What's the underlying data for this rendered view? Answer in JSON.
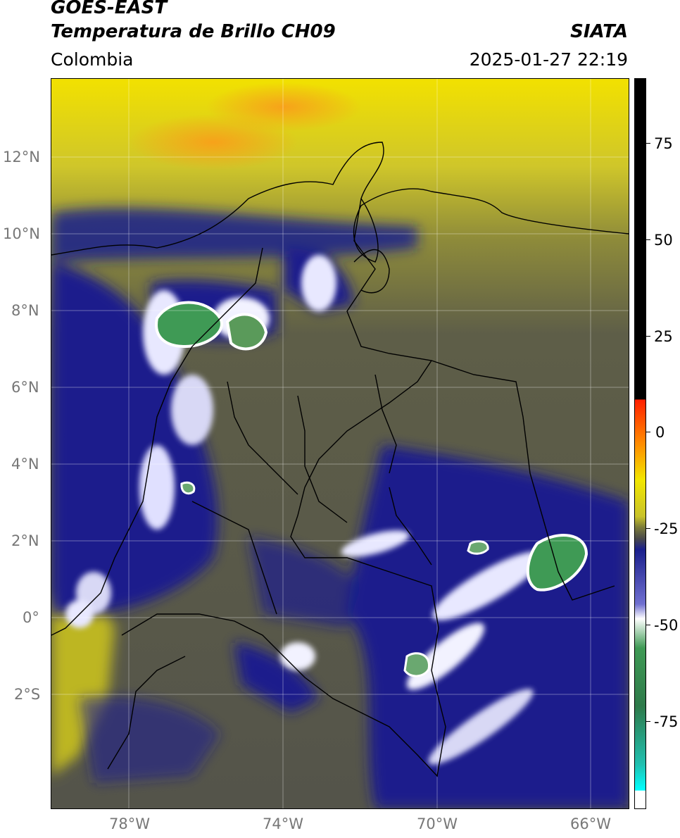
{
  "header": {
    "satellite": "GOES-EAST",
    "product": "Temperatura de Brillo CH09",
    "region": "Colombia",
    "org": "SIATA",
    "datetime": "2025-01-27 22:19"
  },
  "map": {
    "lat_labels": [
      "12°N",
      "10°N",
      "8°N",
      "6°N",
      "4°N",
      "2°N",
      "0°",
      "2°S"
    ],
    "lon_labels": [
      "78°W",
      "74°W",
      "70°W",
      "66°W"
    ]
  },
  "colorbar": {
    "ticks": [
      "75",
      "50",
      "25",
      "0",
      "-25",
      "-50",
      "-75"
    ]
  },
  "colors": {
    "warm_yellow": "#e6d800",
    "olive": "#7d7a3a",
    "gray": "#5a5a4c",
    "navy": "#1a1f8c",
    "white": "#f2f2ff",
    "green": "#3f9a55",
    "orange": "#f7a21a"
  }
}
